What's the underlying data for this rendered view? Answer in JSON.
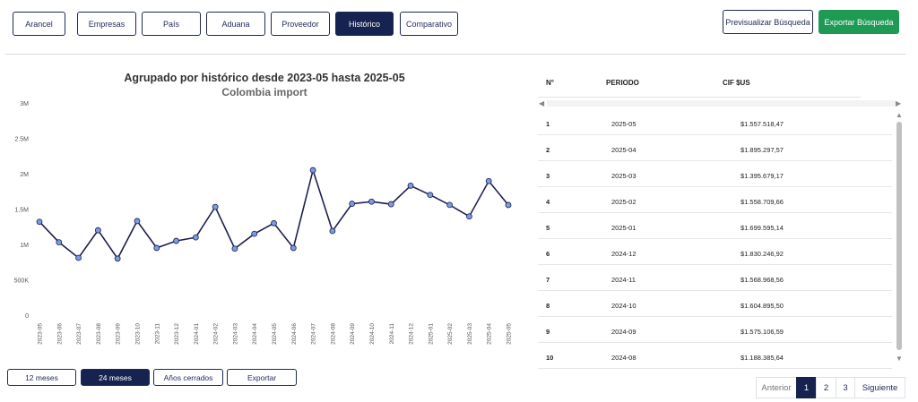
{
  "tabs": [
    {
      "label": "Arancel",
      "active": false
    },
    {
      "label": "Empresas",
      "active": false
    },
    {
      "label": "País",
      "active": false
    },
    {
      "label": "Aduana",
      "active": false
    },
    {
      "label": "Proveedor",
      "active": false
    },
    {
      "label": "Histórico",
      "active": true
    },
    {
      "label": "Comparativo",
      "active": false
    }
  ],
  "actions": {
    "preview_label": "Previsualizar Búsqueda",
    "export_label": "Exportar Búsqueda"
  },
  "colors": {
    "accent": "#16224f",
    "green": "#1f9a55",
    "line": "#1e2050",
    "marker": "#7b9be0"
  },
  "chart_data": {
    "type": "line",
    "title": "Agrupado por histórico desde 2023-05 hasta 2025-05",
    "subtitle": "Colombia import",
    "ylim": [
      0,
      3000000
    ],
    "y_ticks": [
      0,
      500000,
      1000000,
      1500000,
      2000000,
      2500000,
      3000000
    ],
    "y_tick_labels": [
      "0",
      "500K",
      "1M",
      "1.5M",
      "2M",
      "2.5M",
      "3M"
    ],
    "categories": [
      "2023-05",
      "2023-06",
      "2023-07",
      "2023-08",
      "2023-09",
      "2023-10",
      "2023-11",
      "2023-12",
      "2024-01",
      "2024-02",
      "2024-03",
      "2024-04",
      "2024-05",
      "2024-06",
      "2024-07",
      "2024-08",
      "2024-09",
      "2024-10",
      "2024-11",
      "2024-12",
      "2025-01",
      "2025-02",
      "2025-03",
      "2025-04",
      "2025-05"
    ],
    "values": [
      1320000,
      1030000,
      810000,
      1200000,
      800000,
      1330000,
      950000,
      1050000,
      1100000,
      1530000,
      940000,
      1150000,
      1300000,
      950000,
      2050000,
      1190000,
      1575107,
      1604896,
      1568969,
      1830247,
      1699595,
      1558710,
      1395679,
      1895298,
      1557518
    ],
    "grid": false
  },
  "period_buttons": [
    {
      "label": "12 meses",
      "active": false
    },
    {
      "label": "24 meses",
      "active": true
    },
    {
      "label": "Años cerrados",
      "active": false
    },
    {
      "label": "Exportar",
      "active": false
    }
  ],
  "table": {
    "headers": [
      "N°",
      "PERIODO",
      "CIF $US"
    ],
    "rows": [
      {
        "n": "1",
        "periodo": "2025-05",
        "cif": "$1.557.518,47"
      },
      {
        "n": "2",
        "periodo": "2025-04",
        "cif": "$1.895.297,57"
      },
      {
        "n": "3",
        "periodo": "2025-03",
        "cif": "$1.395.679,17"
      },
      {
        "n": "4",
        "periodo": "2025-02",
        "cif": "$1.558.709,66"
      },
      {
        "n": "5",
        "periodo": "2025-01",
        "cif": "$1.699.595,14"
      },
      {
        "n": "6",
        "periodo": "2024-12",
        "cif": "$1.830.246,92"
      },
      {
        "n": "7",
        "periodo": "2024-11",
        "cif": "$1.568.968,56"
      },
      {
        "n": "8",
        "periodo": "2024-10",
        "cif": "$1.604.895,50"
      },
      {
        "n": "9",
        "periodo": "2024-09",
        "cif": "$1.575.106,59"
      },
      {
        "n": "10",
        "periodo": "2024-08",
        "cif": "$1.188.385,64"
      }
    ]
  },
  "pagination": {
    "prev": "Anterior",
    "pages": [
      "1",
      "2",
      "3"
    ],
    "current": "1",
    "next": "Siguiente"
  }
}
